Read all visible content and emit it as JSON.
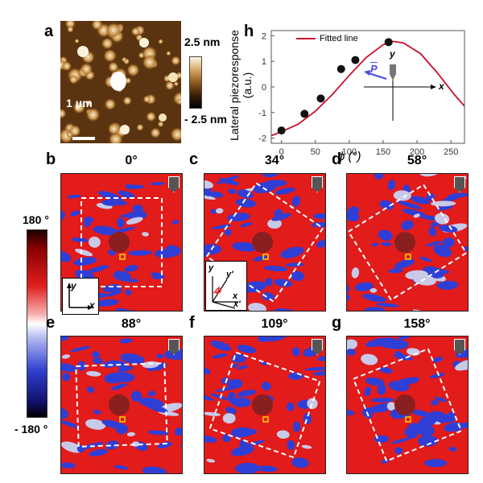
{
  "panel_a": {
    "label": "a",
    "scale_top": "2.5 nm",
    "scale_bottom": "- 2.5 nm",
    "scale_bar": "1 μm"
  },
  "panel_h": {
    "label": "h",
    "legend": "Fitted line",
    "p_label": "P",
    "axis_x_label": "x",
    "axis_y_label": "y"
  },
  "colorbar": {
    "top": "180 °",
    "bottom": "- 180 °"
  },
  "phase_panels": [
    {
      "label": "b",
      "angle": "0°"
    },
    {
      "label": "c",
      "angle": "34°"
    },
    {
      "label": "d",
      "angle": "58°"
    },
    {
      "label": "e",
      "angle": "88°"
    },
    {
      "label": "f",
      "angle": "109°"
    },
    {
      "label": "g",
      "angle": "158°"
    }
  ],
  "inset_b": {
    "y": "y",
    "x": "x"
  },
  "inset_c": {
    "y": "y",
    "yp": "y'",
    "x": "x",
    "xp": "x'",
    "phi": "ϕ"
  },
  "colors": {
    "red": "#e21b1b",
    "blue": "#2f3fd6",
    "fit_line": "#c8102e",
    "data_point": "#111111"
  },
  "chart_data": {
    "type": "line",
    "xlabel": "ϕ (°)",
    "ylabel": "Lateral piezoresponse (a.u.)",
    "xlim": [
      -15,
      270
    ],
    "ylim": [
      -2.2,
      2.2
    ],
    "xticks": [
      0,
      50,
      100,
      150,
      200,
      250
    ],
    "yticks": [
      -2,
      -1,
      0,
      1,
      2
    ],
    "series": [
      {
        "name": "Fitted line",
        "style": "line",
        "x": [
          -15,
          0,
          25,
          50,
          75,
          100,
          125,
          150,
          165,
          180,
          205,
          230,
          255,
          270
        ],
        "y": [
          -1.9,
          -1.75,
          -1.45,
          -0.95,
          -0.3,
          0.45,
          1.15,
          1.65,
          1.78,
          1.72,
          1.3,
          0.55,
          -0.3,
          -0.75
        ]
      },
      {
        "style": "scatter",
        "x": [
          0,
          34,
          58,
          88,
          109,
          158
        ],
        "y": [
          -1.7,
          -1.05,
          -0.45,
          0.7,
          1.05,
          1.75
        ]
      }
    ]
  }
}
